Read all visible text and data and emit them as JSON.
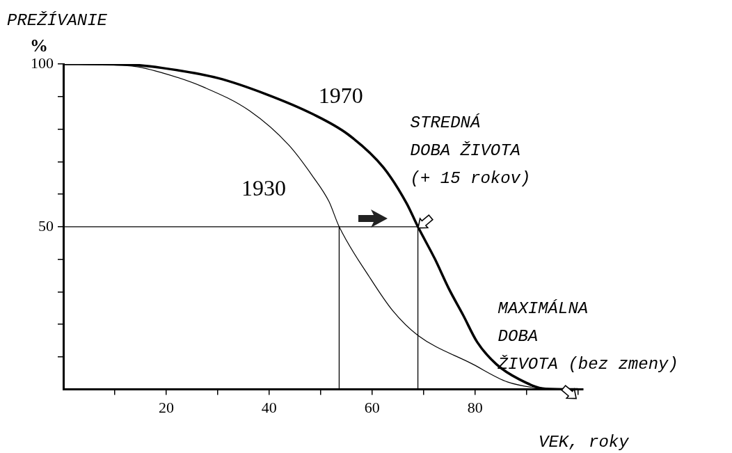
{
  "chart_data": {
    "type": "line",
    "ylabel": "PREŽÍVANIE\n%",
    "xlabel": "VEK, roky",
    "xlim": [
      0,
      101
    ],
    "ylim": [
      0,
      100
    ],
    "xticks": [
      {
        "value": 10,
        "label": null
      },
      20,
      {
        "value": 30,
        "label": null
      },
      40,
      {
        "value": 50,
        "label": null
      },
      60,
      {
        "value": 70,
        "label": null
      },
      80,
      {
        "value": 90,
        "label": null
      },
      {
        "value": 100,
        "label": null
      }
    ],
    "yticks": [
      {
        "value": 10,
        "label": null
      },
      {
        "value": 20,
        "label": null
      },
      {
        "value": 30,
        "label": null
      },
      {
        "value": 40,
        "label": null
      },
      50,
      {
        "value": 60,
        "label": null
      },
      {
        "value": 70,
        "label": null
      },
      {
        "value": 80,
        "label": null
      },
      {
        "value": 90,
        "label": null
      },
      100
    ],
    "grid": false,
    "legend": false,
    "marker": "none",
    "line_style": "solid",
    "series": [
      {
        "name": "1970",
        "color": "#000000",
        "x": [
          0,
          13,
          19.2,
          30,
          39.3,
          48.5,
          55.3,
          62.2,
          66.7,
          68.9,
          72.2,
          74.9,
          77.7,
          80.4,
          84.1,
          88.6,
          93.7,
          100
        ],
        "values": [
          100,
          99.8,
          98.8,
          95.7,
          90.8,
          84.6,
          78.4,
          68.2,
          57.2,
          50,
          40.1,
          31,
          22.8,
          14.6,
          7.8,
          3.1,
          0.2,
          0
        ]
      },
      {
        "name": "1930",
        "color": "#000000",
        "x": [
          0,
          13.3,
          19.2,
          27.4,
          36.2,
          43.8,
          48.5,
          51.6,
          53.6,
          59.5,
          64,
          68.9,
          79.5,
          86.3,
          93.2,
          96
        ],
        "values": [
          100,
          99.4,
          97.3,
          92.8,
          85.6,
          75.1,
          65.4,
          57.8,
          50,
          34.5,
          24.2,
          16.6,
          7.8,
          2.3,
          0.2,
          0
        ]
      }
    ],
    "ref_lines": [
      {
        "axis": "y",
        "value": 50
      },
      {
        "axis": "x",
        "value": 53.6
      },
      {
        "axis": "x",
        "value": 68.9
      }
    ],
    "annotations": [
      {
        "text": "STREDNÁ\nDOBA ŽIVOTA\n(+ 15 rokov)",
        "x": 68.9,
        "y": 50
      },
      {
        "text": "MAXIMÁLNA\nDOBA\nŽIVOTA (bez zmeny)",
        "x": 100,
        "y": 0
      }
    ]
  }
}
